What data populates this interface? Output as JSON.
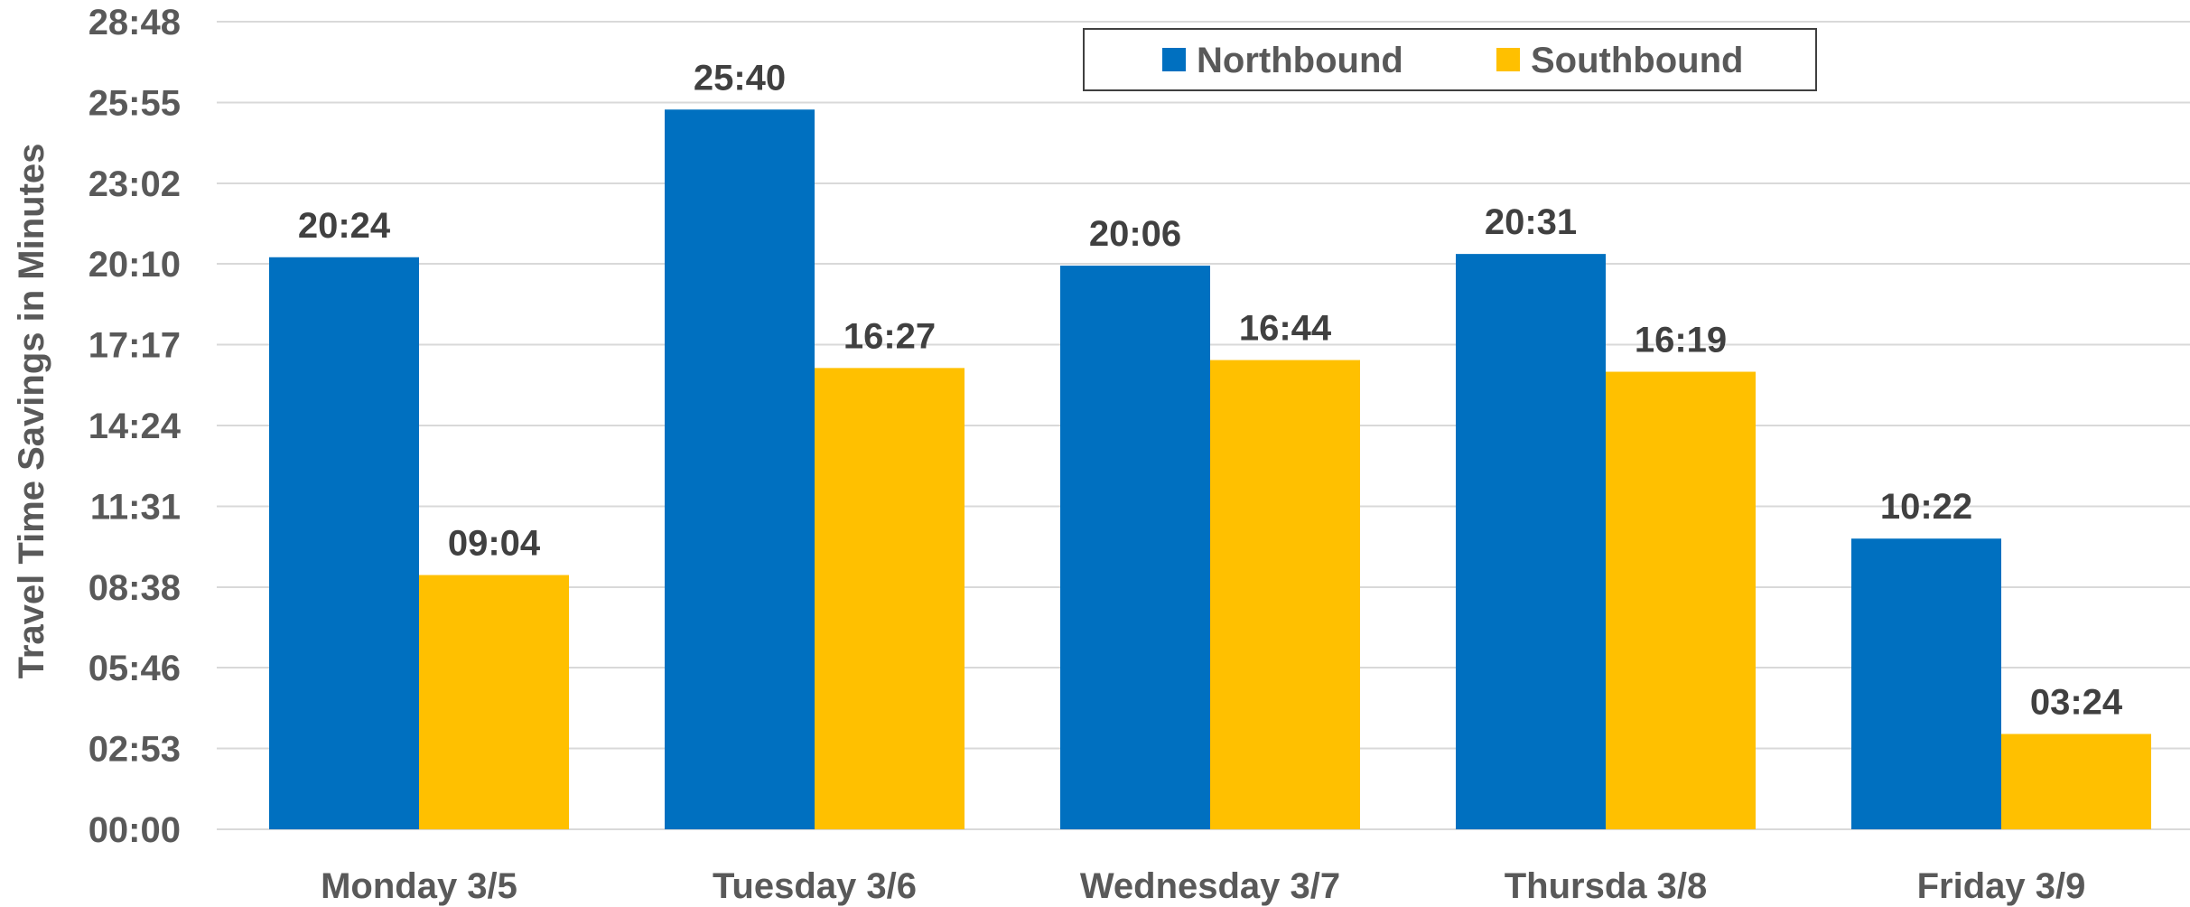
{
  "chart_data": {
    "type": "bar",
    "title": "",
    "xlabel": "",
    "ylabel": "Travel Time Savings in Minutes",
    "y_unit": "mm:ss",
    "ylim": [
      "00:00",
      "28:48"
    ],
    "y_ticks": [
      "00:00",
      "02:53",
      "05:46",
      "08:38",
      "11:31",
      "14:24",
      "17:17",
      "20:10",
      "23:02",
      "25:55",
      "28:48"
    ],
    "grid": true,
    "legend_position": "top-right",
    "categories": [
      "Monday 3/5",
      "Tuesday 3/6",
      "Wednesday 3/7",
      "Thursda 3/8",
      "Friday 3/9"
    ],
    "series": [
      {
        "name": "Northbound",
        "color": "#0070C0",
        "values": [
          "20:24",
          "25:40",
          "20:06",
          "20:31",
          "10:22"
        ]
      },
      {
        "name": "Southbound",
        "color": "#FFC000",
        "values": [
          "09:04",
          "16:27",
          "16:44",
          "16:19",
          "03:24"
        ]
      }
    ]
  }
}
